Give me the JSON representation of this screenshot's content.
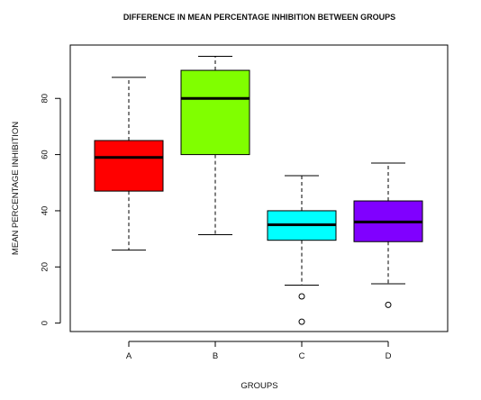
{
  "chart_data": {
    "type": "boxplot",
    "title": "DIFFERENCE IN MEAN PERCENTAGE INHIBITION BETWEEN GROUPS",
    "xlabel": "GROUPS",
    "ylabel": "MEAN PERCENTAGE INHIBITION",
    "ylim": [
      -3,
      99
    ],
    "yticks": [
      0,
      20,
      40,
      60,
      80
    ],
    "categories": [
      "A",
      "B",
      "C",
      "D"
    ],
    "grid": false,
    "legend": "none",
    "boxes": [
      {
        "group": "A",
        "color": "#ff0000",
        "whisker_low": 26,
        "q1": 47,
        "median": 59,
        "q3": 65,
        "whisker_high": 87.5,
        "outliers": []
      },
      {
        "group": "B",
        "color": "#80ff00",
        "whisker_low": 31.5,
        "q1": 60,
        "median": 80,
        "q3": 90,
        "whisker_high": 95,
        "outliers": []
      },
      {
        "group": "C",
        "color": "#00ffff",
        "whisker_low": 13.5,
        "q1": 29.5,
        "median": 35,
        "q3": 40,
        "whisker_high": 52.5,
        "outliers": [
          9.5,
          0.5
        ]
      },
      {
        "group": "D",
        "color": "#8000ff",
        "whisker_low": 14,
        "q1": 29,
        "median": 36,
        "q3": 43.5,
        "whisker_high": 57,
        "outliers": [
          6.5
        ]
      }
    ]
  }
}
